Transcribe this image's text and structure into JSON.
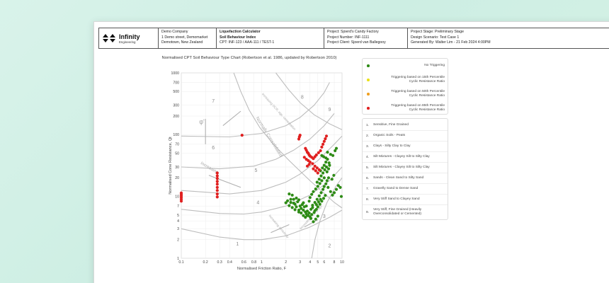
{
  "header": {
    "logo_name": "Infinity",
    "logo_sub": "Engineering",
    "company": [
      "Demo Company",
      "1 Demo street, Demomarket",
      "Demotown, New Zealand"
    ],
    "calc_title": "Liquefaction Calculator",
    "calc_sub": "Soil Behaviour Index",
    "calc_cpt": "CPT: INF-123 / AAA-111 / TEST-1",
    "project": "Project: Sjoerd's Candy Factory",
    "project_number": "Project Number: INF-1111",
    "project_client": "Project Client: Sjoerd van Ballegooy",
    "project_stage": "Project Stage: Preliminary Stage",
    "design_scenario": "Design Scenario: Test Case 1",
    "generated_by": "Generated By: Walter Lim - 21 Feb 2024 4:00PM"
  },
  "chart_data": {
    "type": "scatter",
    "title": "Normalised CPT Soil Behaviour Type Chart (Robertson et al. 1986, updated by Robertson 2010)",
    "xlabel": "Normalised Friction Ratio, F",
    "ylabel": "Normalised Cone Resistance, Qt",
    "xscale": "log",
    "yscale": "log",
    "xlim": [
      0.1,
      10
    ],
    "ylim": [
      1,
      1000
    ],
    "x_ticks": [
      "0.1",
      "0.2",
      "0.3",
      "0.4",
      "0.6",
      "0.8",
      "1",
      "2",
      "3",
      "4",
      "5",
      "6",
      "8",
      "10"
    ],
    "y_ticks": [
      "1",
      "2",
      "3",
      "4",
      "5",
      "7",
      "10",
      "20",
      "30",
      "50",
      "70",
      "100",
      "200",
      "300",
      "500",
      "700",
      "1000"
    ],
    "zone_labels": [
      "1",
      "2",
      "3",
      "4",
      "5",
      "6",
      "7",
      "8",
      "9"
    ],
    "annotations": [
      "Normally Consolidated",
      "Increasing OCR, age, cementation",
      "Increasing sensitivity",
      "Increasing OCR & age",
      "Increasing",
      "φ'"
    ],
    "series": [
      {
        "name": "No Triggering",
        "color": "#2e8b16",
        "points": [
          [
            2.1,
            8.5
          ],
          [
            2.3,
            8.0
          ],
          [
            2.5,
            9.0
          ],
          [
            2.6,
            7.5
          ],
          [
            2.8,
            8.2
          ],
          [
            3.0,
            7.0
          ],
          [
            3.1,
            6.4
          ],
          [
            3.3,
            6.0
          ],
          [
            3.5,
            5.6
          ],
          [
            3.6,
            5.2
          ],
          [
            3.8,
            4.9
          ],
          [
            4.0,
            4.7
          ],
          [
            3.4,
            6.8
          ],
          [
            3.2,
            7.4
          ],
          [
            2.9,
            8.8
          ],
          [
            2.7,
            9.4
          ],
          [
            2.4,
            10.5
          ],
          [
            2.2,
            11.0
          ],
          [
            3.7,
            5.8
          ],
          [
            4.2,
            5.1
          ],
          [
            4.5,
            5.5
          ],
          [
            4.8,
            6.2
          ],
          [
            5.0,
            6.8
          ],
          [
            5.3,
            7.5
          ],
          [
            5.6,
            8.4
          ],
          [
            5.9,
            9.3
          ],
          [
            6.2,
            10.4
          ],
          [
            4.6,
            8.0
          ],
          [
            4.9,
            9.0
          ],
          [
            5.2,
            10.2
          ],
          [
            5.5,
            11.5
          ],
          [
            5.8,
            13.0
          ],
          [
            6.0,
            14.5
          ],
          [
            6.3,
            16.0
          ],
          [
            6.5,
            18.0
          ],
          [
            6.8,
            20.0
          ],
          [
            6.0,
            20.0
          ],
          [
            5.6,
            18.0
          ],
          [
            5.3,
            16.2
          ],
          [
            5.0,
            14.6
          ],
          [
            4.7,
            13.2
          ],
          [
            4.4,
            12.0
          ],
          [
            4.2,
            10.8
          ],
          [
            4.0,
            9.6
          ],
          [
            3.9,
            8.4
          ],
          [
            4.3,
            7.2
          ],
          [
            4.1,
            6.2
          ],
          [
            3.9,
            5.4
          ],
          [
            3.7,
            4.9
          ],
          [
            3.5,
            4.6
          ],
          [
            3.3,
            4.9
          ],
          [
            3.1,
            5.4
          ],
          [
            2.9,
            6.0
          ],
          [
            2.7,
            6.8
          ],
          [
            2.5,
            7.8
          ],
          [
            2.3,
            9.0
          ],
          [
            6.5,
            25.0
          ],
          [
            6.8,
            28.0
          ],
          [
            7.0,
            32.0
          ],
          [
            6.9,
            35.0
          ],
          [
            6.4,
            30.0
          ],
          [
            6.1,
            27.0
          ],
          [
            5.8,
            24.0
          ],
          [
            5.5,
            21.5
          ],
          [
            5.2,
            19.0
          ],
          [
            4.9,
            17.0
          ],
          [
            5.4,
            26.0
          ],
          [
            5.7,
            29.0
          ],
          [
            6.0,
            32.0
          ],
          [
            6.3,
            36.0
          ],
          [
            6.6,
            40.0
          ],
          [
            6.3,
            42.0
          ],
          [
            5.9,
            44.0
          ],
          [
            5.6,
            46.0
          ],
          [
            6.7,
            14.0
          ],
          [
            7.2,
            12.0
          ],
          [
            7.6,
            10.5
          ],
          [
            8.0,
            11.5
          ],
          [
            9.8,
            10.0
          ],
          [
            8.5,
            13.0
          ],
          [
            9.0,
            15.0
          ],
          [
            7.5,
            19.0
          ],
          [
            7.9,
            22.0
          ],
          [
            6.6,
            52.0
          ],
          [
            7.2,
            48.0
          ],
          [
            7.7,
            46.0
          ],
          [
            8.2,
            55.0
          ],
          [
            8.5,
            60.0
          ],
          [
            9.5,
            14.0
          ],
          [
            5.0,
            4.8
          ],
          [
            4.7,
            4.3
          ],
          [
            4.4,
            3.9
          ],
          [
            4.1,
            4.4
          ],
          [
            4.6,
            5.9
          ],
          [
            4.3,
            6.6
          ],
          [
            4.8,
            7.4
          ],
          [
            5.1,
            8.2
          ],
          [
            5.4,
            9.0
          ],
          [
            3.3,
            7.9
          ],
          [
            3.6,
            7.0
          ],
          [
            2.9,
            5.6
          ],
          [
            2.6,
            6.1
          ],
          [
            2.2,
            7.1
          ],
          [
            2.0,
            7.9
          ],
          [
            2.4,
            6.6
          ]
        ]
      },
      {
        "name": "Triggering based on 15th Percentile Cyclic Resistance Ratio",
        "color": "#e9e01a",
        "points": []
      },
      {
        "name": "Triggering based on 50th Percentile Cyclic Resistance Ratio",
        "color": "#f0a020",
        "points": []
      },
      {
        "name": "Triggering based on 85th Percentile Cyclic Resistance Ratio",
        "color": "#e02020",
        "points": [
          [
            0.1,
            9.0
          ],
          [
            0.1,
            9.6
          ],
          [
            0.1,
            10.2
          ],
          [
            0.1,
            10.8
          ],
          [
            0.1,
            11.4
          ],
          [
            0.1,
            8.4
          ],
          [
            0.28,
            11.0
          ],
          [
            0.28,
            12.5
          ],
          [
            0.28,
            14.0
          ],
          [
            0.28,
            15.8
          ],
          [
            0.28,
            17.5
          ],
          [
            0.28,
            19.5
          ],
          [
            0.28,
            21.5
          ],
          [
            0.28,
            24.0
          ],
          [
            0.28,
            9.8
          ],
          [
            0.57,
            98.0
          ],
          [
            2.9,
            85.0
          ],
          [
            2.95,
            92.0
          ],
          [
            3.0,
            98.0
          ],
          [
            3.5,
            60.0
          ],
          [
            3.6,
            56.0
          ],
          [
            3.7,
            52.0
          ],
          [
            3.8,
            50.0
          ],
          [
            3.9,
            47.0
          ],
          [
            4.0,
            45.0
          ],
          [
            4.2,
            43.0
          ],
          [
            4.4,
            41.0
          ],
          [
            4.6,
            44.0
          ],
          [
            4.8,
            47.0
          ],
          [
            5.1,
            51.0
          ],
          [
            3.4,
            43.0
          ],
          [
            3.6,
            40.0
          ],
          [
            3.8,
            38.0
          ],
          [
            4.0,
            36.0
          ],
          [
            4.3,
            34.0
          ],
          [
            4.6,
            31.0
          ],
          [
            4.9,
            29.0
          ],
          [
            4.4,
            28.0
          ],
          [
            4.7,
            26.0
          ],
          [
            5.0,
            24.0
          ],
          [
            5.2,
            27.0
          ],
          [
            3.9,
            33.0
          ],
          [
            3.7,
            31.0
          ],
          [
            5.4,
            55.0
          ],
          [
            5.6,
            63.0
          ],
          [
            5.8,
            70.0
          ],
          [
            6.0,
            78.0
          ],
          [
            6.2,
            86.0
          ],
          [
            6.4,
            95.0
          ]
        ]
      }
    ]
  },
  "legend": [
    {
      "label": "No Triggering",
      "color": "#2e8b16"
    },
    {
      "label": "Triggering based on 15th Percentile\nCyclic Resistance Ratio",
      "color": "#e9e01a"
    },
    {
      "label": "Triggering based on 50th Percentile\nCyclic Resistance Ratio",
      "color": "#f0a020"
    },
    {
      "label": "Triggering based on 85th Percentile\nCyclic Resistance Ratio",
      "color": "#e02020"
    }
  ],
  "zones": [
    {
      "num": "1.",
      "label": "Sensitive, Fine Grained"
    },
    {
      "num": "2.",
      "label": "Organic Soils - Peats"
    },
    {
      "num": "3.",
      "label": "Clays - Silty Clay to Clay"
    },
    {
      "num": "4.",
      "label": "Silt Mixtures - Clayey Silt to Silty Clay"
    },
    {
      "num": "5.",
      "label": "Silt Mixtures - Clayey Silt to Silty Clay"
    },
    {
      "num": "6.",
      "label": "Sands - Clean Sand to Silty Sand"
    },
    {
      "num": "7.",
      "label": "Gravelly Sand to Dense Sand"
    },
    {
      "num": "8.",
      "label": "Very Stiff Sand to Clayey Sand"
    },
    {
      "num": "9.",
      "label": "Very Stiff, Fine Grained (Heavily Overconsolidated or Cemented)"
    }
  ]
}
